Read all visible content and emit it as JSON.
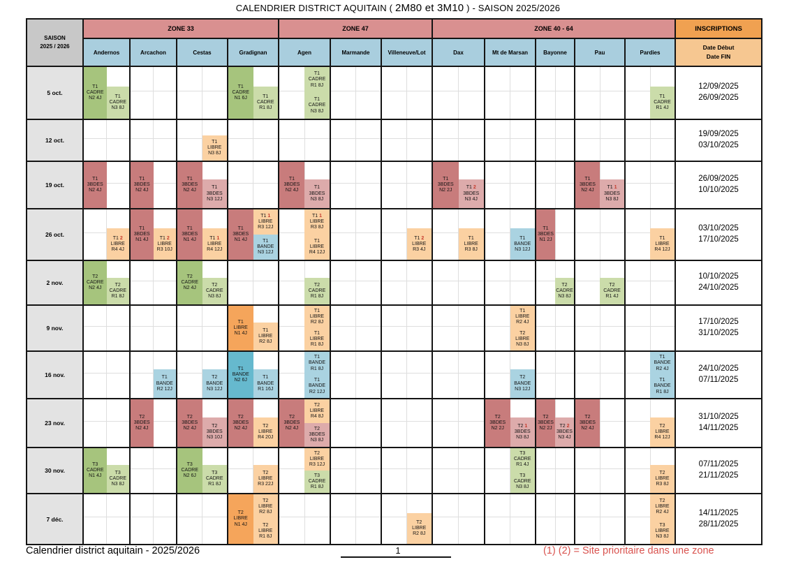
{
  "title": {
    "pre": "CALENDRIER DISTRICT AQUITAIN ( ",
    "mid": "2M80 et 3M10",
    "post": " ) - SAISON 2025/2026"
  },
  "header": {
    "saison_line1": "SAISON",
    "saison_line2": "2025 / 2026",
    "zones": [
      {
        "label": "ZONE 33",
        "venues": [
          "Andernos",
          "Arcachon",
          "Cestas",
          "Gradignan"
        ]
      },
      {
        "label": "ZONE 47",
        "venues": [
          "Agen",
          "Marmande",
          "Villeneuve/Lot"
        ]
      },
      {
        "label": "ZONE 40 - 64",
        "venues": [
          "Dax",
          "Mt de Marsan",
          "Bayonne",
          "Pau",
          "Pardies"
        ]
      }
    ],
    "inscriptions": "INSCRIPTIONS",
    "date_header_line1": "Date Début",
    "date_header_line2": "Date FIN"
  },
  "colors": {
    "zone_pink": "#d99090",
    "venue_blue": "#a9cede",
    "insc_orange": "#f0a151",
    "date_hdr_orange": "#f6c791",
    "saison_gray": "#c8c8c8",
    "row_label_gray": "#e3e3e3",
    "gd": "#a6c47d",
    "gl": "#cbdcaa",
    "rd": "#c87c7c",
    "pl": "#ddabab",
    "od": "#f5a55b",
    "ol": "#fbd1a2",
    "td": "#66b9ce",
    "bl": "#aad3e1",
    "flag_red": "#c5392b",
    "note_red": "#d9534f"
  },
  "rows": [
    {
      "label": "5 oct.",
      "start": "12/09/2025",
      "end": "26/09/2025",
      "events": [
        {
          "v": 0,
          "slot": "L",
          "pos": "full",
          "c": "gd",
          "t": "T1",
          "m": "CADRE",
          "b": "N2 4J"
        },
        {
          "v": 0,
          "slot": "R",
          "pos": "low",
          "c": "gl",
          "t": "T1",
          "m": "CADRE",
          "b": "N3 8J"
        },
        {
          "v": 3,
          "slot": "L",
          "pos": "full",
          "c": "gd",
          "t": "T1",
          "m": "CADRE",
          "b": "N1 6J"
        },
        {
          "v": 3,
          "slot": "R",
          "pos": "low",
          "c": "gl",
          "t": "T1",
          "m": "CADRE",
          "b": "R1 8J"
        },
        {
          "v": 4,
          "slot": "R",
          "pos": "top",
          "c": "gl",
          "t": "T1",
          "m": "CADRE",
          "b": "R1 8J"
        },
        {
          "v": 4,
          "slot": "R",
          "pos": "bot",
          "c": "gl",
          "t": "T1",
          "m": "CADRE",
          "b": "N3 8J"
        },
        {
          "v": 11,
          "slot": "R",
          "pos": "low",
          "c": "gl",
          "t": "T1",
          "m": "CADRE",
          "b": "R1 4J"
        }
      ]
    },
    {
      "label": "12 oct.",
      "start": "19/09/2025",
      "end": "03/10/2025",
      "events": [
        {
          "v": 2,
          "slot": "R",
          "pos": "low",
          "c": "ol",
          "t": "T1",
          "m": "LIBRE",
          "b": "N3 8J"
        }
      ]
    },
    {
      "label": "19 oct.",
      "start": "26/09/2025",
      "end": "10/10/2025",
      "events": [
        {
          "v": 0,
          "slot": "L",
          "pos": "full",
          "c": "rd",
          "t": "T1",
          "m": "3BDES",
          "b": "N2 4J"
        },
        {
          "v": 1,
          "slot": "L",
          "pos": "full",
          "c": "rd",
          "t": "T1",
          "m": "3BDES",
          "b": "N2 4J"
        },
        {
          "v": 2,
          "slot": "L",
          "pos": "full",
          "c": "rd",
          "t": "T1",
          "m": "3BDES",
          "b": "N2 4J"
        },
        {
          "v": 2,
          "slot": "R",
          "pos": "low",
          "c": "pl",
          "t": "T1",
          "m": "3BDES",
          "b": "N3 12J"
        },
        {
          "v": 4,
          "slot": "L",
          "pos": "full",
          "c": "rd",
          "t": "T1",
          "m": "3BDES",
          "b": "N2 4J"
        },
        {
          "v": 4,
          "slot": "R",
          "pos": "low",
          "c": "pl",
          "t": "T1",
          "m": "3BDES",
          "b": "N3 8J"
        },
        {
          "v": 7,
          "slot": "L",
          "pos": "full",
          "c": "rd",
          "t": "T1",
          "m": "3BDES",
          "b": "N2 2J"
        },
        {
          "v": 7,
          "slot": "R",
          "pos": "low",
          "c": "pl",
          "t": "T1",
          "f": "2",
          "m": "3BDES",
          "b": "N3 4J"
        },
        {
          "v": 10,
          "slot": "L",
          "pos": "full",
          "c": "rd",
          "t": "T1",
          "m": "3BDES",
          "b": "N2 4J"
        },
        {
          "v": 10,
          "slot": "R",
          "pos": "low",
          "c": "pl",
          "t": "T1",
          "f": "1",
          "m": "3BDES",
          "b": "N3 8J"
        }
      ]
    },
    {
      "label": "26 oct.",
      "start": "03/10/2025",
      "end": "17/10/2025",
      "events": [
        {
          "v": 0,
          "slot": "R",
          "pos": "low",
          "c": "ol",
          "t": "T1",
          "f": "2",
          "m": "LIBRE",
          "b": "R4 4J"
        },
        {
          "v": 1,
          "slot": "L",
          "pos": "full",
          "c": "rd",
          "t": "T1",
          "m": "3BDES",
          "b": "N1 4J"
        },
        {
          "v": 1,
          "slot": "R",
          "pos": "low",
          "c": "ol",
          "t": "T1",
          "f": "2",
          "m": "LIBRE",
          "b": "R3 10J"
        },
        {
          "v": 2,
          "slot": "L",
          "pos": "full",
          "c": "rd",
          "t": "T1",
          "m": "3BDES",
          "b": "N1 4J"
        },
        {
          "v": 2,
          "slot": "R",
          "pos": "low",
          "c": "ol",
          "t": "T1",
          "f": "1",
          "m": "LIBRE",
          "b": "R4 12J"
        },
        {
          "v": 3,
          "slot": "L",
          "pos": "full",
          "c": "rd",
          "t": "T1",
          "m": "3BDES",
          "b": "N1 4J"
        },
        {
          "v": 3,
          "slot": "R",
          "pos": "top",
          "c": "ol",
          "t": "T1",
          "f": "1",
          "m": "LIBRE",
          "b": "R3 12J"
        },
        {
          "v": 3,
          "slot": "R",
          "pos": "bot",
          "c": "bl",
          "t": "T1",
          "m": "BANDE",
          "b": "N3 12J"
        },
        {
          "v": 4,
          "slot": "R",
          "pos": "top",
          "c": "ol",
          "t": "T1",
          "f": "1",
          "m": "LIBRE",
          "b": "R3 8J"
        },
        {
          "v": 4,
          "slot": "R",
          "pos": "bot",
          "c": "ol",
          "t": "T1",
          "m": "LIBRE",
          "b": "R4 12J"
        },
        {
          "v": 6,
          "slot": "R",
          "pos": "low",
          "c": "ol",
          "t": "T1",
          "f": "2",
          "m": "LIBRE",
          "b": "R3 4J"
        },
        {
          "v": 7,
          "slot": "R",
          "pos": "low",
          "c": "ol",
          "t": "T1",
          "m": "LIBRE",
          "b": "R3 8J"
        },
        {
          "v": 8,
          "slot": "R",
          "pos": "low",
          "c": "bl",
          "t": "T1",
          "m": "BANDE",
          "b": "N3 12J"
        },
        {
          "v": 9,
          "slot": "L",
          "pos": "full",
          "c": "rd",
          "t": "T1",
          "m": "3BDES",
          "b": "N1 2J"
        },
        {
          "v": 11,
          "slot": "R",
          "pos": "low",
          "c": "ol",
          "t": "T1",
          "m": "LIBRE",
          "b": "R4 12J"
        }
      ]
    },
    {
      "label": "2 nov.",
      "start": "10/10/2025",
      "end": "24/10/2025",
      "events": [
        {
          "v": 0,
          "slot": "L",
          "pos": "full",
          "c": "gd",
          "t": "T2",
          "m": "CADRE",
          "b": "N2 4J"
        },
        {
          "v": 0,
          "slot": "R",
          "pos": "low",
          "c": "gl",
          "t": "T2",
          "m": "CADRE",
          "b": "R1 8J"
        },
        {
          "v": 2,
          "slot": "L",
          "pos": "full",
          "c": "gd",
          "t": "T2",
          "m": "CADRE",
          "b": "N2 4J"
        },
        {
          "v": 2,
          "slot": "R",
          "pos": "low",
          "c": "gl",
          "t": "T2",
          "m": "CADRE",
          "b": "N3 8J"
        },
        {
          "v": 4,
          "slot": "R",
          "pos": "low",
          "c": "gl",
          "t": "T2",
          "m": "CADRE",
          "b": "R1 8J"
        },
        {
          "v": 9,
          "slot": "R",
          "pos": "low",
          "c": "gl",
          "t": "T2",
          "m": "CADRE",
          "b": "N3 8J"
        },
        {
          "v": 10,
          "slot": "R",
          "pos": "low",
          "c": "gl",
          "t": "T2",
          "m": "CADRE",
          "b": "R1 4J"
        }
      ]
    },
    {
      "label": "9 nov.",
      "start": "17/10/2025",
      "end": "31/10/2025",
      "events": [
        {
          "v": 3,
          "slot": "L",
          "pos": "full",
          "c": "od",
          "t": "T1",
          "m": "LIBRE",
          "b": "N1 4J"
        },
        {
          "v": 3,
          "slot": "R",
          "pos": "low",
          "c": "ol",
          "t": "T1",
          "m": "LIBRE",
          "b": "R2 8J"
        },
        {
          "v": 4,
          "slot": "R",
          "pos": "top",
          "c": "ol",
          "t": "T1",
          "m": "LIBRE",
          "b": "R2 8J"
        },
        {
          "v": 4,
          "slot": "R",
          "pos": "bot",
          "c": "ol",
          "t": "T1",
          "m": "LIBRE",
          "b": "R1 8J"
        },
        {
          "v": 8,
          "slot": "R",
          "pos": "top",
          "c": "ol",
          "t": "T1",
          "m": "LIBRE",
          "b": "R2 4J"
        },
        {
          "v": 8,
          "slot": "R",
          "pos": "bot",
          "c": "ol",
          "t": "T2",
          "m": "LIBRE",
          "b": "N3 8J"
        }
      ]
    },
    {
      "label": "16 nov.",
      "start": "24/10/2025",
      "end": "07/11/2025",
      "events": [
        {
          "v": 1,
          "slot": "R",
          "pos": "low",
          "c": "bl",
          "t": "T1",
          "m": "BANDE",
          "b": "R2 12J"
        },
        {
          "v": 2,
          "slot": "R",
          "pos": "low",
          "c": "bl",
          "t": "T2",
          "m": "BANDE",
          "b": "N3 12J"
        },
        {
          "v": 3,
          "slot": "L",
          "pos": "full",
          "c": "td",
          "t": "T1",
          "m": "BANDE",
          "b": "N2 6J"
        },
        {
          "v": 3,
          "slot": "R",
          "pos": "low",
          "c": "bl",
          "t": "T1",
          "m": "BANDE",
          "b": "R1 16J"
        },
        {
          "v": 4,
          "slot": "R",
          "pos": "top",
          "c": "bl",
          "t": "T1",
          "m": "BANDE",
          "b": "R1 8J"
        },
        {
          "v": 4,
          "slot": "R",
          "pos": "bot",
          "c": "bl",
          "t": "T1",
          "m": "BANDE",
          "b": "R2 12J"
        },
        {
          "v": 8,
          "slot": "R",
          "pos": "low",
          "c": "bl",
          "t": "T2",
          "m": "BANDE",
          "b": "N3 12J"
        },
        {
          "v": 11,
          "slot": "R",
          "pos": "top",
          "c": "bl",
          "t": "T1",
          "m": "BANDE",
          "b": "R2 4J"
        },
        {
          "v": 11,
          "slot": "R",
          "pos": "bot",
          "c": "bl",
          "t": "T1",
          "m": "BANDE",
          "b": "R1 8J"
        }
      ]
    },
    {
      "label": "23 nov.",
      "start": "31/10/2025",
      "end": "14/11/2025",
      "events": [
        {
          "v": 1,
          "slot": "L",
          "pos": "full",
          "c": "rd",
          "t": "T2",
          "m": "3BDES",
          "b": "N2 4J"
        },
        {
          "v": 2,
          "slot": "L",
          "pos": "full",
          "c": "rd",
          "t": "T2",
          "m": "3BDES",
          "b": "N2 4J"
        },
        {
          "v": 2,
          "slot": "R",
          "pos": "low",
          "c": "pl",
          "t": "T2",
          "m": "3BDES",
          "b": "N3 10J"
        },
        {
          "v": 3,
          "slot": "L",
          "pos": "full",
          "c": "rd",
          "t": "T2",
          "m": "3BDES",
          "b": "N2 4J"
        },
        {
          "v": 3,
          "slot": "R",
          "pos": "low",
          "c": "ol",
          "t": "T2",
          "m": "LIBRE",
          "b": "R4 20J"
        },
        {
          "v": 4,
          "slot": "L",
          "pos": "full",
          "c": "rd",
          "t": "T2",
          "m": "3BDES",
          "b": "N2 4J"
        },
        {
          "v": 4,
          "slot": "R",
          "pos": "top",
          "c": "ol",
          "t": "T2",
          "m": "LIBRE",
          "b": "R4 8J"
        },
        {
          "v": 4,
          "slot": "R",
          "pos": "bot",
          "c": "pl",
          "t": "T2",
          "m": "3BDES",
          "b": "N3 8J"
        },
        {
          "v": 8,
          "slot": "L",
          "pos": "full",
          "c": "rd",
          "t": "T2",
          "m": "3BDES",
          "b": "N2 2J"
        },
        {
          "v": 8,
          "slot": "R",
          "pos": "low",
          "c": "pl",
          "t": "T2",
          "f": "1",
          "m": "3BDES",
          "b": "N3 8J"
        },
        {
          "v": 9,
          "slot": "L",
          "pos": "full",
          "c": "rd",
          "t": "T2",
          "m": "3BDES",
          "b": "N2 2J"
        },
        {
          "v": 9,
          "slot": "R",
          "pos": "low",
          "c": "pl",
          "t": "T2",
          "f": "2",
          "m": "3BDES",
          "b": "N3 4J"
        },
        {
          "v": 10,
          "slot": "L",
          "pos": "full",
          "c": "rd",
          "t": "T2",
          "m": "3BDES",
          "b": "N2 4J"
        },
        {
          "v": 11,
          "slot": "R",
          "pos": "low",
          "c": "ol",
          "t": "T2",
          "m": "LIBRE",
          "b": "R4 12J"
        }
      ]
    },
    {
      "label": "30 nov.",
      "start": "07/11/2025",
      "end": "21/11/2025",
      "events": [
        {
          "v": 0,
          "slot": "L",
          "pos": "full",
          "c": "gd",
          "t": "T3",
          "m": "CADRE",
          "b": "N1 4J"
        },
        {
          "v": 0,
          "slot": "R",
          "pos": "low",
          "c": "gl",
          "t": "T3",
          "m": "CADRE",
          "b": "N3 8J"
        },
        {
          "v": 2,
          "slot": "L",
          "pos": "full",
          "c": "gd",
          "t": "T3",
          "m": "CADRE",
          "b": "N2 6J"
        },
        {
          "v": 2,
          "slot": "R",
          "pos": "low",
          "c": "gl",
          "t": "T3",
          "m": "CADRE",
          "b": "R1 8J"
        },
        {
          "v": 3,
          "slot": "R",
          "pos": "low",
          "c": "ol",
          "t": "T2",
          "m": "LIBRE",
          "b": "R3 22J"
        },
        {
          "v": 4,
          "slot": "R",
          "pos": "top",
          "c": "ol",
          "t": "T2",
          "m": "LIBRE",
          "b": "R3 12J"
        },
        {
          "v": 4,
          "slot": "R",
          "pos": "bot",
          "c": "gl",
          "t": "T3",
          "m": "CADRE",
          "b": "R1 8J"
        },
        {
          "v": 8,
          "slot": "R",
          "pos": "top",
          "c": "gl",
          "t": "T3",
          "m": "CADRE",
          "b": "R1 4J"
        },
        {
          "v": 8,
          "slot": "R",
          "pos": "bot",
          "c": "gl",
          "t": "T3",
          "m": "CADRE",
          "b": "N3 8J"
        },
        {
          "v": 11,
          "slot": "R",
          "pos": "low",
          "c": "ol",
          "t": "T2",
          "m": "LIBRE",
          "b": "R3 8J"
        }
      ]
    },
    {
      "label": "7 déc.",
      "start": "14/11/2025",
      "end": "28/11/2025",
      "events": [
        {
          "v": 3,
          "slot": "L",
          "pos": "full",
          "c": "od",
          "t": "T2",
          "m": "LIBRE",
          "b": "N1 4J"
        },
        {
          "v": 3,
          "slot": "R",
          "pos": "top",
          "c": "ol",
          "t": "T2",
          "m": "LIBRE",
          "b": "R2 8J"
        },
        {
          "v": 3,
          "slot": "R",
          "pos": "bot",
          "c": "ol",
          "t": "T2",
          "m": "LIBRE",
          "b": "R1 8J"
        },
        {
          "v": 6,
          "slot": "R",
          "pos": "low",
          "c": "ol",
          "t": "T2",
          "m": "LIBRE",
          "b": "R2 8J"
        },
        {
          "v": 11,
          "slot": "R",
          "pos": "top",
          "c": "ol",
          "t": "T2",
          "m": "LIBRE",
          "b": "R2 4J"
        },
        {
          "v": 11,
          "slot": "R",
          "pos": "bot",
          "c": "ol",
          "t": "T3",
          "m": "LIBRE",
          "b": "N3 8J"
        }
      ]
    }
  ],
  "footer": {
    "left": "Calendrier district aquitain - 2025/2026",
    "page": "1",
    "note": "(1) (2) = Site prioritaire dans une zone"
  }
}
